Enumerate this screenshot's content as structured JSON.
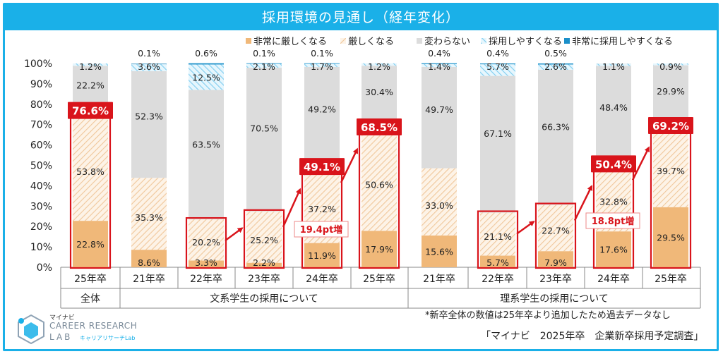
{
  "title": "採用環境の見通し（経年変化）",
  "colors": {
    "very_harsh": "#f0b879",
    "harsh_stripe": "#f3d3ae",
    "unchanged": "#dcdcdc",
    "easier_stripe": "#8fd3f0",
    "very_easy": "#1a8fc9",
    "highlight": "#d9141b"
  },
  "chart_data": {
    "type": "bar",
    "stacked": true,
    "ylim": [
      0,
      100
    ],
    "yticks": [
      "0%",
      "10%",
      "20%",
      "30%",
      "40%",
      "50%",
      "60%",
      "70%",
      "80%",
      "90%",
      "100%"
    ],
    "legend": [
      "非常に厳しくなる",
      "厳しくなる",
      "変わらない",
      "採用しやすくなる",
      "非常に採用しやすくなる"
    ],
    "legend_position": "top-right",
    "categories": [
      "25年卒",
      "21年卒",
      "22年卒",
      "23年卒",
      "24年卒",
      "25年卒",
      "21年卒",
      "22年卒",
      "23年卒",
      "24年卒",
      "25年卒"
    ],
    "groups": [
      {
        "label": "全体",
        "start": 0,
        "end": 0
      },
      {
        "label": "文系学生の採用について",
        "start": 1,
        "end": 5
      },
      {
        "label": "理系学生の採用について",
        "start": 6,
        "end": 10
      }
    ],
    "series": [
      {
        "name": "非常に厳しくなる",
        "values": [
          22.8,
          8.6,
          3.3,
          2.2,
          11.9,
          17.9,
          15.6,
          5.7,
          7.9,
          17.6,
          29.5
        ],
        "labels": [
          "22.8%",
          "8.6%",
          "3.3%",
          "2.2%",
          "11.9%",
          "17.9%",
          "15.6%",
          "5.7%",
          "7.9%",
          "17.6%",
          "29.5%"
        ]
      },
      {
        "name": "厳しくなる",
        "values": [
          53.8,
          35.3,
          20.2,
          25.2,
          37.2,
          50.6,
          33.0,
          21.1,
          22.7,
          32.8,
          39.7
        ],
        "labels": [
          "53.8%",
          "35.3%",
          "20.2%",
          "25.2%",
          "37.2%",
          "50.6%",
          "33.0%",
          "21.1%",
          "22.7%",
          "32.8%",
          "39.7%"
        ]
      },
      {
        "name": "変わらない",
        "values": [
          22.2,
          52.3,
          63.5,
          70.5,
          49.2,
          30.4,
          49.7,
          67.1,
          66.3,
          48.4,
          29.9
        ],
        "labels": [
          "22.2%",
          "52.3%",
          "63.5%",
          "70.5%",
          "49.2%",
          "30.4%",
          "49.7%",
          "67.1%",
          "66.3%",
          "48.4%",
          "29.9%"
        ]
      },
      {
        "name": "採用しやすくなる",
        "values": [
          1.2,
          3.6,
          12.5,
          2.1,
          1.7,
          1.2,
          1.4,
          5.7,
          2.6,
          1.1,
          0.9
        ],
        "labels": [
          "1.2%",
          "3.6%",
          "12.5%",
          "2.1%",
          "1.7%",
          "1.2%",
          "1.4%",
          "5.7%",
          "2.6%",
          "1.1%",
          "0.9%"
        ]
      },
      {
        "name": "非常に採用しやすくなる",
        "values": [
          0,
          0.1,
          0.6,
          0.1,
          0.1,
          0,
          0.4,
          0.4,
          0.5,
          0,
          0
        ],
        "labels": [
          "",
          "0.1%",
          "0.6%",
          "0.1%",
          "0.1%",
          "",
          "0.4%",
          "0.4%",
          "0.5%",
          "",
          ""
        ]
      }
    ],
    "totals": [
      {
        "index": 0,
        "value": 76.6,
        "label": "76.6%",
        "badge": true
      },
      {
        "index": 2,
        "value": 23.5,
        "label": "",
        "badge": false
      },
      {
        "index": 3,
        "value": 27.4,
        "label": "",
        "badge": false
      },
      {
        "index": 4,
        "value": 49.1,
        "label": "49.1%",
        "badge": true
      },
      {
        "index": 5,
        "value": 68.5,
        "label": "68.5%",
        "badge": true
      },
      {
        "index": 7,
        "value": 26.8,
        "label": "",
        "badge": false
      },
      {
        "index": 8,
        "value": 30.6,
        "label": "",
        "badge": false
      },
      {
        "index": 9,
        "value": 50.4,
        "label": "50.4%",
        "badge": true
      },
      {
        "index": 10,
        "value": 69.2,
        "label": "69.2%",
        "badge": true
      }
    ],
    "trend_arrows": [
      {
        "group": "文系",
        "from": 2,
        "to": 5,
        "annotation": "19.4pt増"
      },
      {
        "group": "理系",
        "from": 7,
        "to": 10,
        "annotation": "18.8pt増"
      }
    ]
  },
  "note": "*新卒全体の数値は25年卒より追加したため過去データなし",
  "source": "「マイナビ　2025年卒　企業新卒採用予定調査」",
  "logo": {
    "small": "マイナビ",
    "line1": "CAREER RESEARCH",
    "line2": "LAB",
    "sub": "キャリアリサーチLab"
  }
}
